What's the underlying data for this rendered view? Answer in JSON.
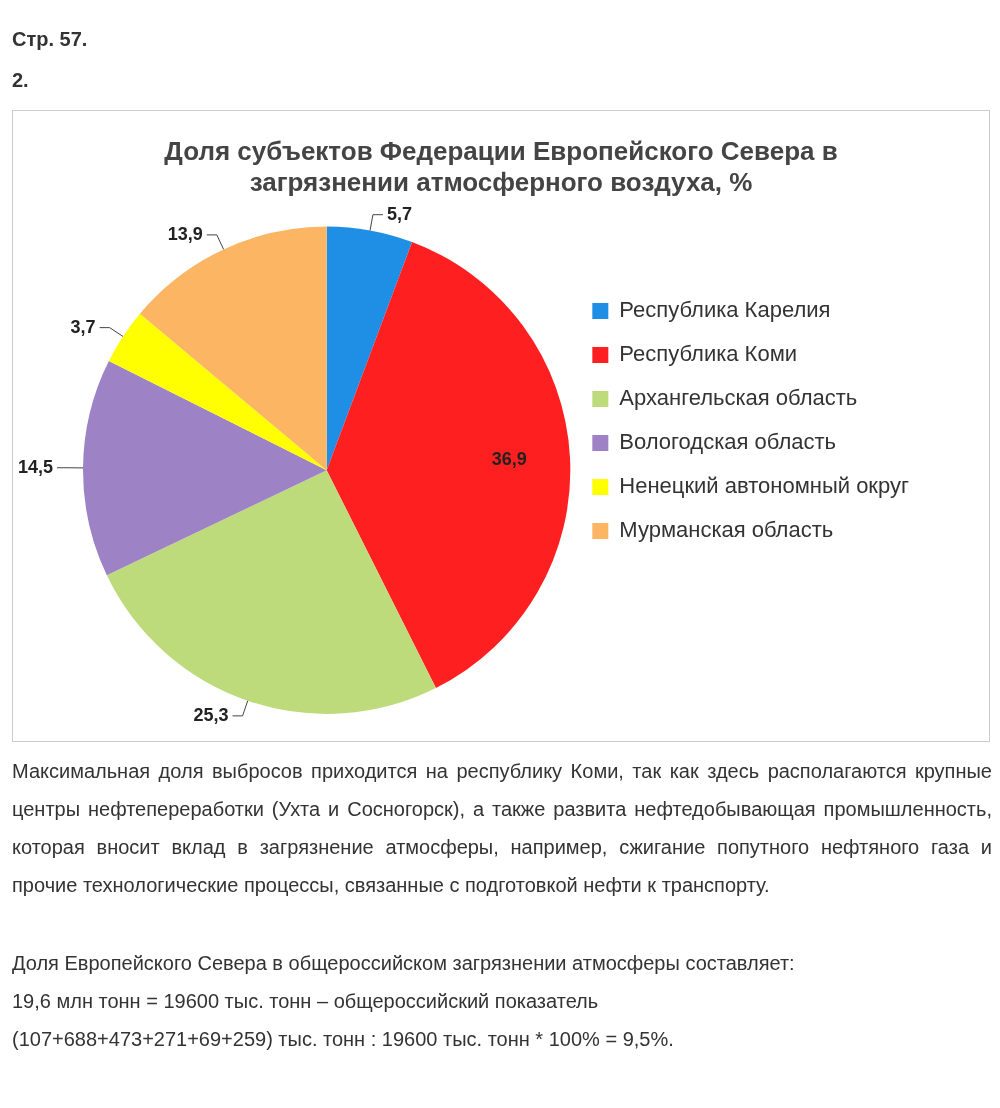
{
  "chart_data": {
    "type": "pie",
    "title": [
      "Доля субъектов Федерации Европейского Севера в",
      "загрязнении атмосферного воздуха, %"
    ],
    "categories": [
      "Республика Карелия",
      "Республика Коми",
      "Архангельская область",
      "Вологодская область",
      "Ненецкий автономный округ",
      "Мурманская область"
    ],
    "values": [
      5.7,
      36.9,
      25.3,
      14.5,
      3.7,
      13.9
    ],
    "value_labels": [
      "5,7",
      "36,9",
      "25,3",
      "14,5",
      "3,7",
      "13,9"
    ],
    "colors": [
      "#1f8fe6",
      "#fe2020",
      "#bedb7b",
      "#9d82c6",
      "#ffff00",
      "#fbb563"
    ],
    "legend": "right",
    "annotations": [
      "Стр. 57.",
      "2.",
      "Максимальная доля выбросов приходится на республику Коми, так как здесь располагаются крупные центры нефтепереработки (Ухта и Сосногорск), а также развита нефтедобывающая промышленность, которая вносит вклад в загрязнение атмосферы, например, сжигание попутного нефтяного газа и прочие технологические процессы, связанные с подготовкой нефти к транспорту.",
      "Доля Европейского Севера в общероссийском загрязнении атмосферы составляет:",
      "19,6 млн тонн = 19600 тыс. тонн – общероссийский показатель",
      "(107+688+473+271+69+259) тыс. тонн : 19600 тыс. тонн * 100% = 9,5%."
    ]
  }
}
